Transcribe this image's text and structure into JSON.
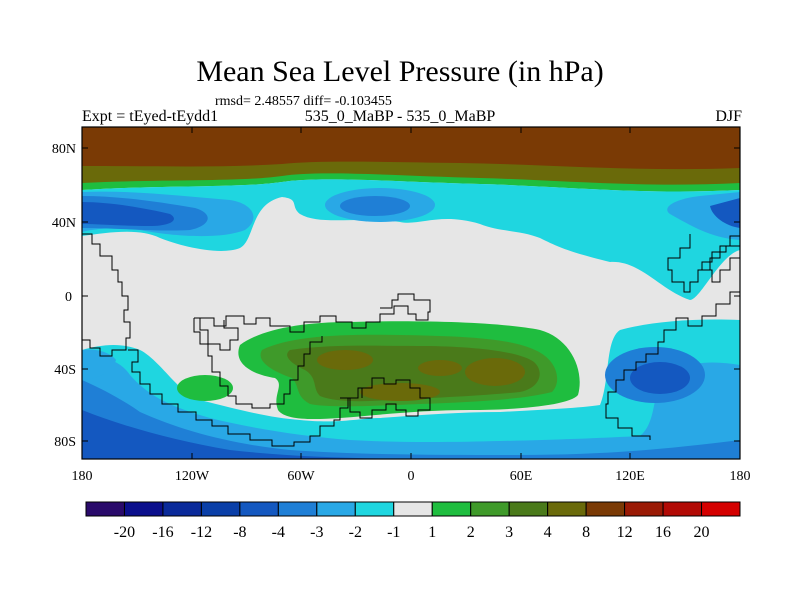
{
  "header": {
    "title": "Mean Sea Level Pressure (in hPa)",
    "stats": "rmsd= 2.48557 diff= -0.103455",
    "left_label": "Expt = tEyed-tEydd1",
    "center_label": "535_0_MaBP - 535_0_MaBP",
    "right_label": "DJF"
  },
  "axes": {
    "lat_ticks": [
      "80N",
      "40N",
      "0",
      "40S",
      "80S"
    ],
    "lon_ticks": [
      "180",
      "120W",
      "60W",
      "0",
      "60E",
      "120E",
      "180"
    ]
  },
  "colorbar": {
    "labels": [
      "-20",
      "-16",
      "-12",
      "-8",
      "-4",
      "-3",
      "-2",
      "-1",
      "1",
      "2",
      "3",
      "4",
      "8",
      "12",
      "16",
      "20"
    ],
    "colors": [
      "#2a0a6b",
      "#0b0f8c",
      "#0a2a9a",
      "#0a3fa8",
      "#1458c0",
      "#1f7fd6",
      "#29a8e6",
      "#1fd6e0",
      "#e6e6e6",
      "#1fbd3f",
      "#3f9a2a",
      "#4a7a1a",
      "#6a6a0a",
      "#7a3a05",
      "#9a1a05",
      "#b20a05",
      "#d40000"
    ]
  },
  "map_colors": {
    "neutral": "#e6e6e6",
    "cyan": "#1fd6e0",
    "light_blue": "#29a8e6",
    "mid_blue": "#1f7fd6",
    "blue": "#1458c0",
    "deep_blue": "#0a3fa8",
    "green": "#1fbd3f",
    "mid_green": "#3f9a2a",
    "olive": "#4a7a1a",
    "dark_olive": "#6a6a0a",
    "brown": "#7a3a05",
    "dark_brown": "#7a3a05"
  }
}
